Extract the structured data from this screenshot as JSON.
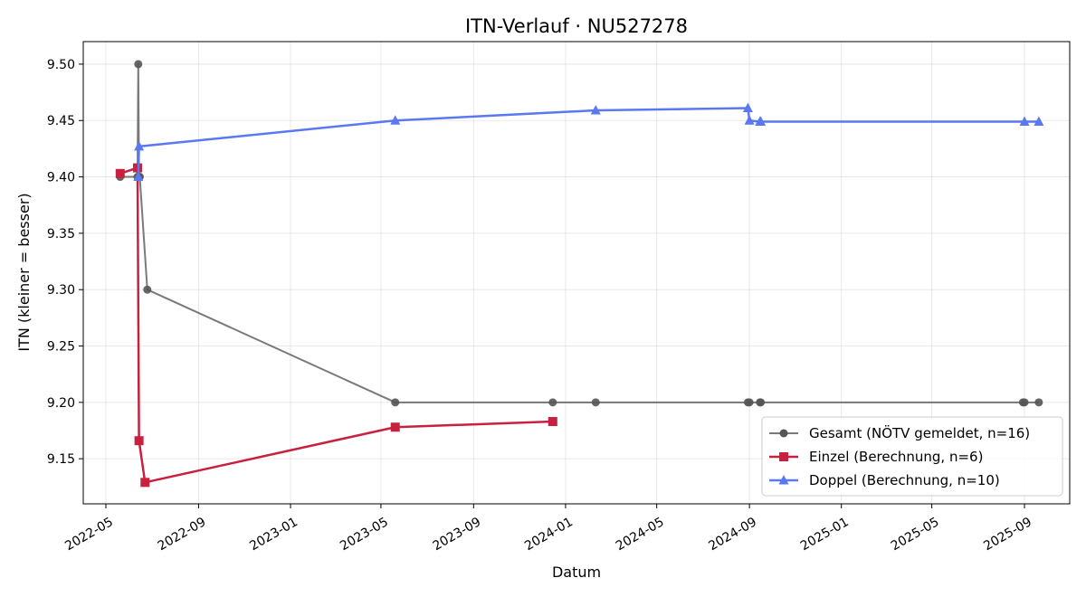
{
  "chart_data": {
    "type": "line",
    "title": "ITN-Verlauf · NU527278",
    "xlabel": "Datum",
    "ylabel": "ITN  (kleiner = besser)",
    "x_type": "date",
    "xlim": [
      "2022-04-01",
      "2025-10-31"
    ],
    "ylim": [
      9.11,
      9.52
    ],
    "x_ticks": [
      "2022-05-01",
      "2022-09-01",
      "2023-01-01",
      "2023-05-01",
      "2023-09-01",
      "2024-01-01",
      "2024-05-01",
      "2024-09-01",
      "2025-01-01",
      "2025-05-01",
      "2025-09-01"
    ],
    "x_tick_labels": [
      "2022-05",
      "2022-09",
      "2023-01",
      "2023-05",
      "2023-09",
      "2024-01",
      "2024-05",
      "2024-09",
      "2025-01",
      "2025-05",
      "2025-09"
    ],
    "y_ticks": [
      9.15,
      9.2,
      9.25,
      9.3,
      9.35,
      9.4,
      9.45,
      9.5
    ],
    "y_tick_labels": [
      "9.15",
      "9.20",
      "9.25",
      "9.30",
      "9.35",
      "9.40",
      "9.45",
      "9.50"
    ],
    "grid": true,
    "legend_position": "bottom-right",
    "series": [
      {
        "name": "Gesamt (NÖTV gemeldet, n=16)",
        "color": "#555555",
        "marker": "circle",
        "points": [
          {
            "x": "2022-05-20",
            "y": 9.4
          },
          {
            "x": "2022-06-12",
            "y": 9.4
          },
          {
            "x": "2022-06-13",
            "y": 9.5
          },
          {
            "x": "2022-06-14",
            "y": 9.4
          },
          {
            "x": "2022-06-15",
            "y": 9.4
          },
          {
            "x": "2022-06-25",
            "y": 9.3
          },
          {
            "x": "2023-05-20",
            "y": 9.2
          },
          {
            "x": "2023-12-15",
            "y": 9.2
          },
          {
            "x": "2024-02-10",
            "y": 9.2
          },
          {
            "x": "2024-08-30",
            "y": 9.2
          },
          {
            "x": "2024-09-01",
            "y": 9.2
          },
          {
            "x": "2024-09-15",
            "y": 9.2
          },
          {
            "x": "2024-09-16",
            "y": 9.2
          },
          {
            "x": "2025-08-30",
            "y": 9.2
          },
          {
            "x": "2025-09-01",
            "y": 9.2
          },
          {
            "x": "2025-09-20",
            "y": 9.2
          }
        ]
      },
      {
        "name": "Einzel (Berechnung, n=6)",
        "color": "#c8203f",
        "marker": "square",
        "points": [
          {
            "x": "2022-05-20",
            "y": 9.403
          },
          {
            "x": "2022-06-12",
            "y": 9.408
          },
          {
            "x": "2022-06-14",
            "y": 9.166
          },
          {
            "x": "2022-06-22",
            "y": 9.129
          },
          {
            "x": "2023-05-20",
            "y": 9.178
          },
          {
            "x": "2023-12-15",
            "y": 9.183
          }
        ]
      },
      {
        "name": "Doppel (Berechnung, n=10)",
        "color": "#5a78f0",
        "marker": "triangle",
        "points": [
          {
            "x": "2022-06-13",
            "y": 9.4
          },
          {
            "x": "2022-06-14",
            "y": 9.427
          },
          {
            "x": "2023-05-20",
            "y": 9.45
          },
          {
            "x": "2024-02-10",
            "y": 9.459
          },
          {
            "x": "2024-08-30",
            "y": 9.461
          },
          {
            "x": "2024-09-01",
            "y": 9.45
          },
          {
            "x": "2024-09-15",
            "y": 9.449
          },
          {
            "x": "2024-09-16",
            "y": 9.449
          },
          {
            "x": "2025-09-01",
            "y": 9.449
          },
          {
            "x": "2025-09-20",
            "y": 9.449
          }
        ]
      }
    ]
  }
}
